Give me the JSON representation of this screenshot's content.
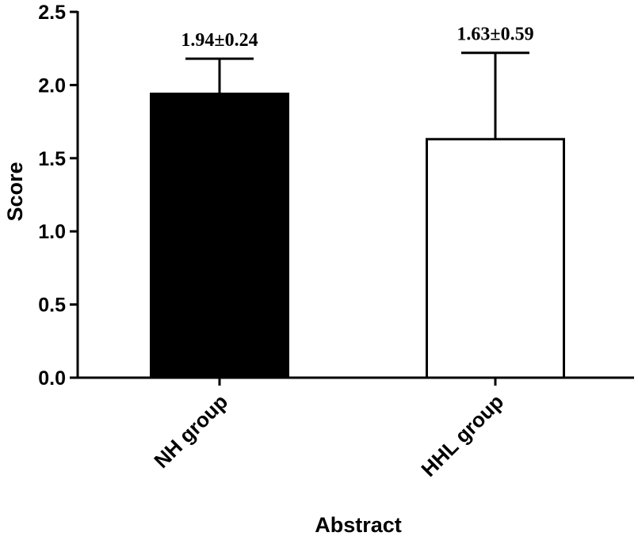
{
  "chart_data": {
    "type": "bar",
    "title": "",
    "xlabel": "Abstract",
    "ylabel": "Score",
    "ylim": [
      0,
      2.5
    ],
    "yticks": [
      "0.0",
      "0.5",
      "1.0",
      "1.5",
      "2.0",
      "2.5"
    ],
    "categories": [
      "NH group",
      "HHL group"
    ],
    "values": [
      1.94,
      1.63
    ],
    "errors": [
      0.24,
      0.59
    ],
    "data_labels": [
      "1.94±0.24",
      "1.63±0.59"
    ],
    "bar_fills": [
      "#000000",
      "#ffffff"
    ],
    "bar_stroke": "#000000",
    "grid": false,
    "legend": "none"
  }
}
